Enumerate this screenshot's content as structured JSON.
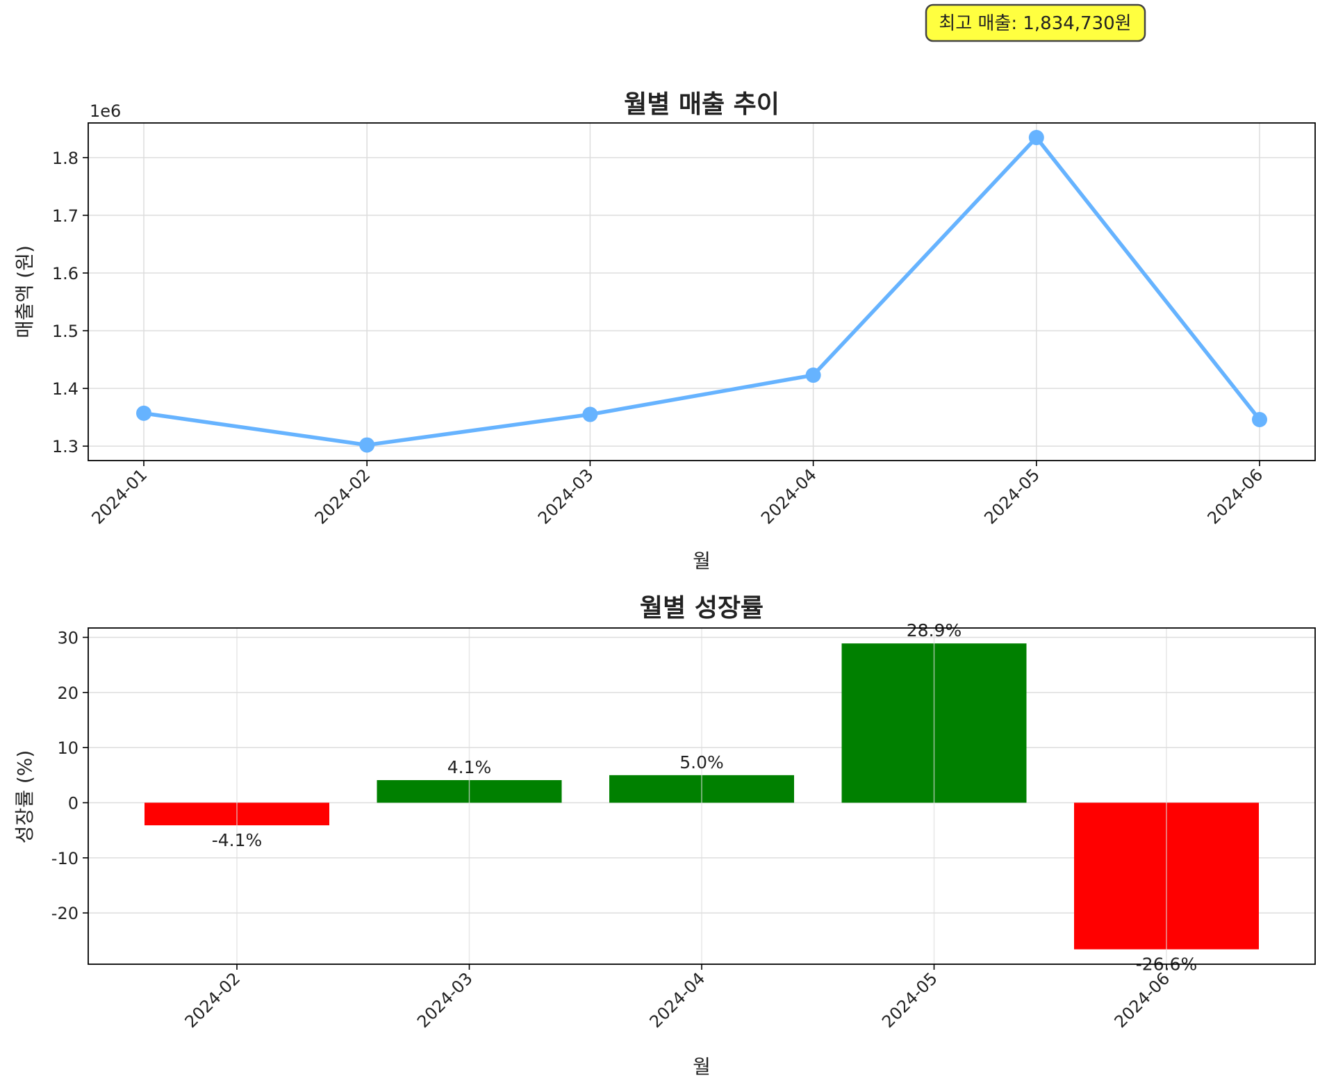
{
  "annotation": {
    "text": "최고 매출: 1,834,730원",
    "bg": "#ffff40"
  },
  "chart_data": [
    {
      "type": "line",
      "title": "월별 매출 추이",
      "xlabel": "월",
      "ylabel": "매출액 (원)",
      "offset_label": "1e6",
      "categories": [
        "2024-01",
        "2024-02",
        "2024-03",
        "2024-04",
        "2024-05",
        "2024-06"
      ],
      "series": [
        {
          "values": [
            1357000,
            1302000,
            1355000,
            1423000,
            1834730,
            1346000
          ],
          "color": "#66b3ff"
        }
      ],
      "ylim": [
        1275000,
        1860000
      ],
      "yticks": [
        1300000,
        1400000,
        1500000,
        1600000,
        1700000,
        1800000
      ],
      "ytick_labels": [
        "1.3",
        "1.4",
        "1.5",
        "1.6",
        "1.7",
        "1.8"
      ],
      "grid": true
    },
    {
      "type": "bar",
      "title": "월별 성장률",
      "xlabel": "월",
      "ylabel": "성장률 (%)",
      "categories": [
        "2024-02",
        "2024-03",
        "2024-04",
        "2024-05",
        "2024-06"
      ],
      "values": [
        -4.1,
        4.1,
        5.0,
        28.9,
        -26.6
      ],
      "value_labels": [
        "-4.1%",
        "4.1%",
        "5.0%",
        "28.9%",
        "-26.6%"
      ],
      "colors": {
        "positive": "#008000",
        "negative": "#ff0000"
      },
      "ylim": [
        -29.3,
        31.7
      ],
      "yticks": [
        -20,
        -10,
        0,
        10,
        20,
        30
      ],
      "ytick_labels": [
        "-20",
        "-10",
        "0",
        "10",
        "20",
        "30"
      ],
      "grid": true
    }
  ]
}
